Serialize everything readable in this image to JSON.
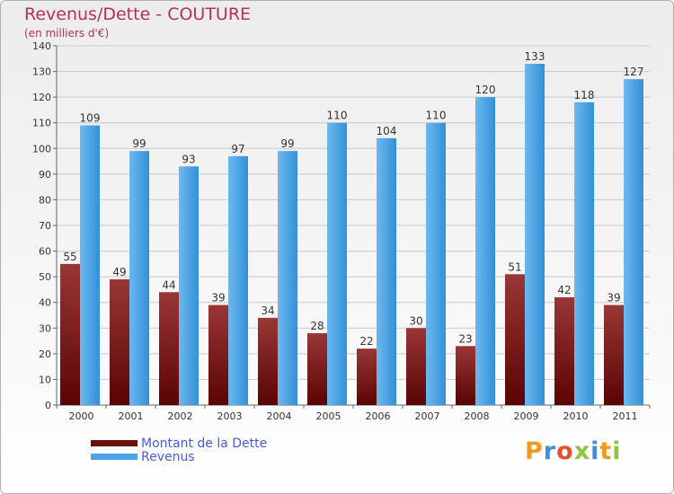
{
  "header": {
    "title": "Revenus/Dette - COUTURE",
    "subtitle": "(en milliers d'€)"
  },
  "chart_data": {
    "type": "bar",
    "title": "Revenus/Dette - COUTURE",
    "subtitle": "(en milliers d'€)",
    "xlabel": "",
    "ylabel": "",
    "ylim": [
      0,
      140
    ],
    "yticks": [
      0,
      10,
      20,
      30,
      40,
      50,
      60,
      70,
      80,
      90,
      100,
      110,
      120,
      130,
      140
    ],
    "grid": true,
    "categories": [
      "2000",
      "2001",
      "2002",
      "2003",
      "2004",
      "2005",
      "2006",
      "2007",
      "2008",
      "2009",
      "2010",
      "2011"
    ],
    "series": [
      {
        "name": "Montant de la Dette",
        "color": "#7a1c1c",
        "values": [
          55,
          49,
          44,
          39,
          34,
          28,
          22,
          30,
          23,
          51,
          42,
          39
        ]
      },
      {
        "name": "Revenus",
        "color": "#4ea3e4",
        "values": [
          109,
          99,
          93,
          97,
          99,
          110,
          104,
          110,
          120,
          133,
          118,
          127
        ]
      }
    ],
    "legend_position": "bottom-left"
  },
  "legend": {
    "items": [
      {
        "label": "Montant de la Dette",
        "color": "#6b0e0e"
      },
      {
        "label": "Revenus",
        "color": "#4ea3e4"
      }
    ]
  },
  "logo": {
    "letters": [
      "P",
      "r",
      "o",
      "x",
      "i",
      "t",
      "i"
    ],
    "colors": [
      "#f29a1d",
      "#3d8fd6",
      "#e2522a",
      "#8cc63f",
      "#3d8fd6",
      "#f29a1d",
      "#8cc63f"
    ]
  }
}
